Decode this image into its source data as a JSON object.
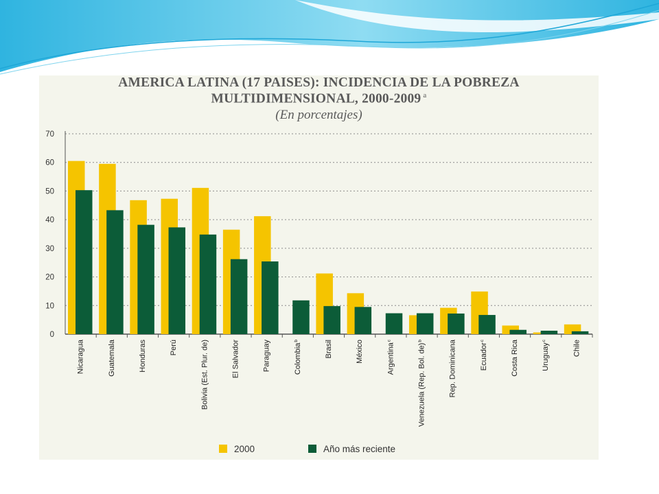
{
  "colors": {
    "series_2000": "#f5c400",
    "series_recent": "#0c5c38",
    "panel_background": "#f4f5ec",
    "title_text": "#5a5a5a",
    "decor_swoosh": "#4fc3e8"
  },
  "chart_data": {
    "type": "bar",
    "title_line1": "AMERICA LATINA (17 PAISES): INCIDENCIA DE LA POBREZA",
    "title_line2": "MULTIDIMENSIONAL, 2000-2009",
    "title_superscript": "a",
    "subtitle": "(En porcentajes)",
    "ylim": [
      0,
      70
    ],
    "yticks": [
      0,
      10,
      20,
      30,
      40,
      50,
      60,
      70
    ],
    "grid": true,
    "legend_position": "bottom",
    "categories": [
      "Nicaragua",
      "Guatemala",
      "Honduras",
      "Perú",
      "Bolivia (Est. Plur. de)",
      "El Salvador",
      "Paraguay",
      "Colombia",
      "Brasil",
      "México",
      "Argentina",
      "Venezuela (Rep. Bol. de)",
      "Rep. Dominicana",
      "Ecuador",
      "Costa Rica",
      "Uruguay",
      "Chile"
    ],
    "category_notes": [
      "",
      "",
      "",
      "",
      "",
      "",
      "",
      "b",
      "",
      "",
      "c",
      "b",
      "",
      "c",
      "",
      "c",
      ""
    ],
    "series": [
      {
        "name": "2000",
        "values": [
          60.5,
          59.5,
          46.8,
          47.3,
          51.1,
          36.5,
          41.2,
          null,
          21.2,
          14.3,
          null,
          6.6,
          9.2,
          14.9,
          3.0,
          0.6,
          3.4
        ]
      },
      {
        "name": "Año más reciente",
        "values": [
          50.3,
          43.3,
          38.2,
          37.3,
          34.8,
          26.2,
          25.4,
          11.8,
          9.8,
          9.5,
          7.3,
          7.3,
          7.2,
          6.7,
          1.5,
          1.2,
          1.0
        ]
      }
    ]
  }
}
